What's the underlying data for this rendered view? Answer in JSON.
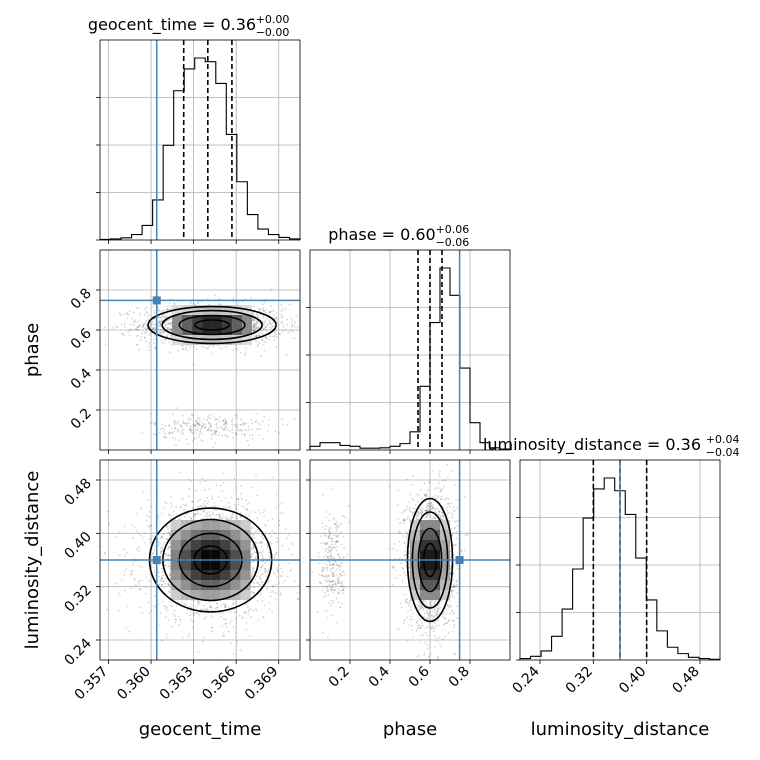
{
  "chart_data": {
    "type": "corner",
    "parameters": [
      {
        "key": "geocent_time",
        "label": "geocent_time",
        "range": [
          0.3564,
          0.3705
        ],
        "ticks": [
          0.357,
          0.36,
          0.363,
          0.366,
          0.369
        ],
        "tick_labels": [
          "0.357",
          "0.360",
          "0.363",
          "0.366",
          "0.369"
        ],
        "injection": 0.3604,
        "quantiles": [
          0.3623,
          0.364,
          0.3657
        ],
        "title_main": "geocent_time = 0.36",
        "title_sup": "+0.00",
        "title_sub": "−0.00",
        "hist": [
          0.003,
          0.006,
          0.012,
          0.03,
          0.08,
          0.22,
          0.52,
          0.82,
          0.94,
          1.0,
          0.98,
          0.86,
          0.58,
          0.32,
          0.14,
          0.06,
          0.03,
          0.014,
          0.006
        ]
      },
      {
        "key": "phase",
        "label": "phase",
        "range": [
          0.0,
          1.0
        ],
        "ticks": [
          0.2,
          0.4,
          0.6,
          0.8
        ],
        "tick_labels": [
          "0.2",
          "0.4",
          "0.6",
          "0.8"
        ],
        "injection": 0.748,
        "quantiles": [
          0.54,
          0.6,
          0.66
        ],
        "title_main": "phase = 0.60",
        "title_sup": "+0.06",
        "title_sub": "−0.06",
        "hist": [
          0.02,
          0.04,
          0.04,
          0.025,
          0.02,
          0.01,
          0.01,
          0.012,
          0.02,
          0.035,
          0.1,
          0.35,
          0.7,
          1.0,
          0.85,
          0.45,
          0.15,
          0.04,
          0.012,
          0.005
        ]
      },
      {
        "key": "luminosity_distance",
        "label": "luminosity_distance",
        "range": [
          0.21,
          0.51
        ],
        "ticks": [
          0.24,
          0.32,
          0.4,
          0.48
        ],
        "tick_labels": [
          "0.24",
          "0.32",
          "0.40",
          "0.48"
        ],
        "injection": 0.36,
        "quantiles": [
          0.32,
          0.36,
          0.4
        ],
        "title_main": "luminosity_distance = 0.36",
        "title_sup": "+0.04",
        "title_sub": "−0.04",
        "hist": [
          0.008,
          0.02,
          0.05,
          0.13,
          0.28,
          0.5,
          0.78,
          0.94,
          1.0,
          0.93,
          0.8,
          0.56,
          0.33,
          0.16,
          0.07,
          0.035,
          0.015,
          0.008,
          0.004
        ]
      }
    ],
    "pairs": [
      {
        "x": "geocent_time",
        "y": "phase",
        "clusters": [
          {
            "cx": 0.3643,
            "cy": 0.625,
            "sx": 0.0022,
            "sy": 0.045,
            "n": 1800
          },
          {
            "cx": 0.3642,
            "cy": 0.115,
            "sx": 0.0018,
            "sy": 0.03,
            "n": 260
          }
        ]
      },
      {
        "x": "geocent_time",
        "y": "luminosity_distance",
        "clusters": [
          {
            "cx": 0.3642,
            "cy": 0.36,
            "sx": 0.0021,
            "sy": 0.038,
            "n": 2000
          }
        ]
      },
      {
        "x": "phase",
        "y": "luminosity_distance",
        "clusters": [
          {
            "cx": 0.6,
            "cy": 0.36,
            "sx": 0.055,
            "sy": 0.045,
            "n": 1800
          },
          {
            "cx": 0.115,
            "cy": 0.355,
            "sx": 0.03,
            "sy": 0.035,
            "n": 260
          }
        ]
      }
    ],
    "injection_color": "#4682b4",
    "grid": true,
    "contour_levels": 3
  }
}
